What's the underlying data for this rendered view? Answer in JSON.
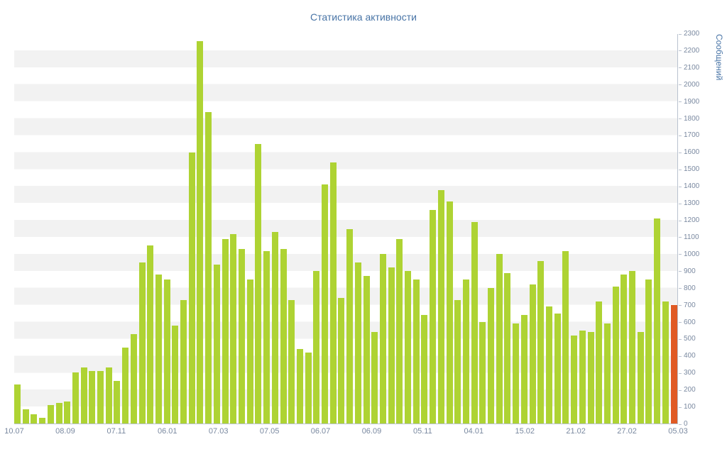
{
  "title": "Статистика активности",
  "chart_data": {
    "type": "bar",
    "title": "Статистика активности",
    "xlabel": "",
    "ylabel": "Сообщений",
    "ylim": [
      0,
      2300
    ],
    "y_tick_step": 100,
    "y_ticks": [
      0,
      100,
      200,
      300,
      400,
      500,
      600,
      700,
      800,
      900,
      1000,
      1100,
      1200,
      1300,
      1400,
      1500,
      1600,
      1700,
      1800,
      1900,
      2000,
      2100,
      2200,
      2300
    ],
    "x_tick_labels": [
      "10.07",
      "08.09",
      "07.11",
      "06.01",
      "07.03",
      "07.05",
      "06.07",
      "06.09",
      "05.11",
      "04.01",
      "15.02",
      "21.02",
      "27.02",
      "05.03"
    ],
    "values": [
      230,
      85,
      55,
      35,
      110,
      120,
      130,
      300,
      330,
      310,
      310,
      330,
      250,
      450,
      530,
      950,
      1050,
      880,
      850,
      580,
      730,
      1600,
      2260,
      1840,
      940,
      1090,
      1120,
      1030,
      850,
      1650,
      1020,
      1130,
      1030,
      730,
      440,
      420,
      900,
      1410,
      1540,
      740,
      1150,
      950,
      870,
      540,
      1000,
      920,
      1090,
      900,
      850,
      640,
      1260,
      1380,
      1310,
      730,
      850,
      1190,
      600,
      800,
      1000,
      890,
      590,
      640,
      820,
      960,
      690,
      650,
      1020,
      520,
      550,
      540,
      720,
      590,
      810,
      880,
      900,
      540,
      850,
      1210,
      720,
      700
    ],
    "highlight_index": 79,
    "grid": "horizontal-striped-bands",
    "legend": "none",
    "y_axis_position": "right"
  },
  "colors": {
    "bar": "#aed333",
    "bar_highlight": "#e05a24",
    "title_text": "#4874a6",
    "axis_text": "#7a89a0",
    "axis_line": "#b9c2cf",
    "stripe": "#f2f2f2"
  }
}
